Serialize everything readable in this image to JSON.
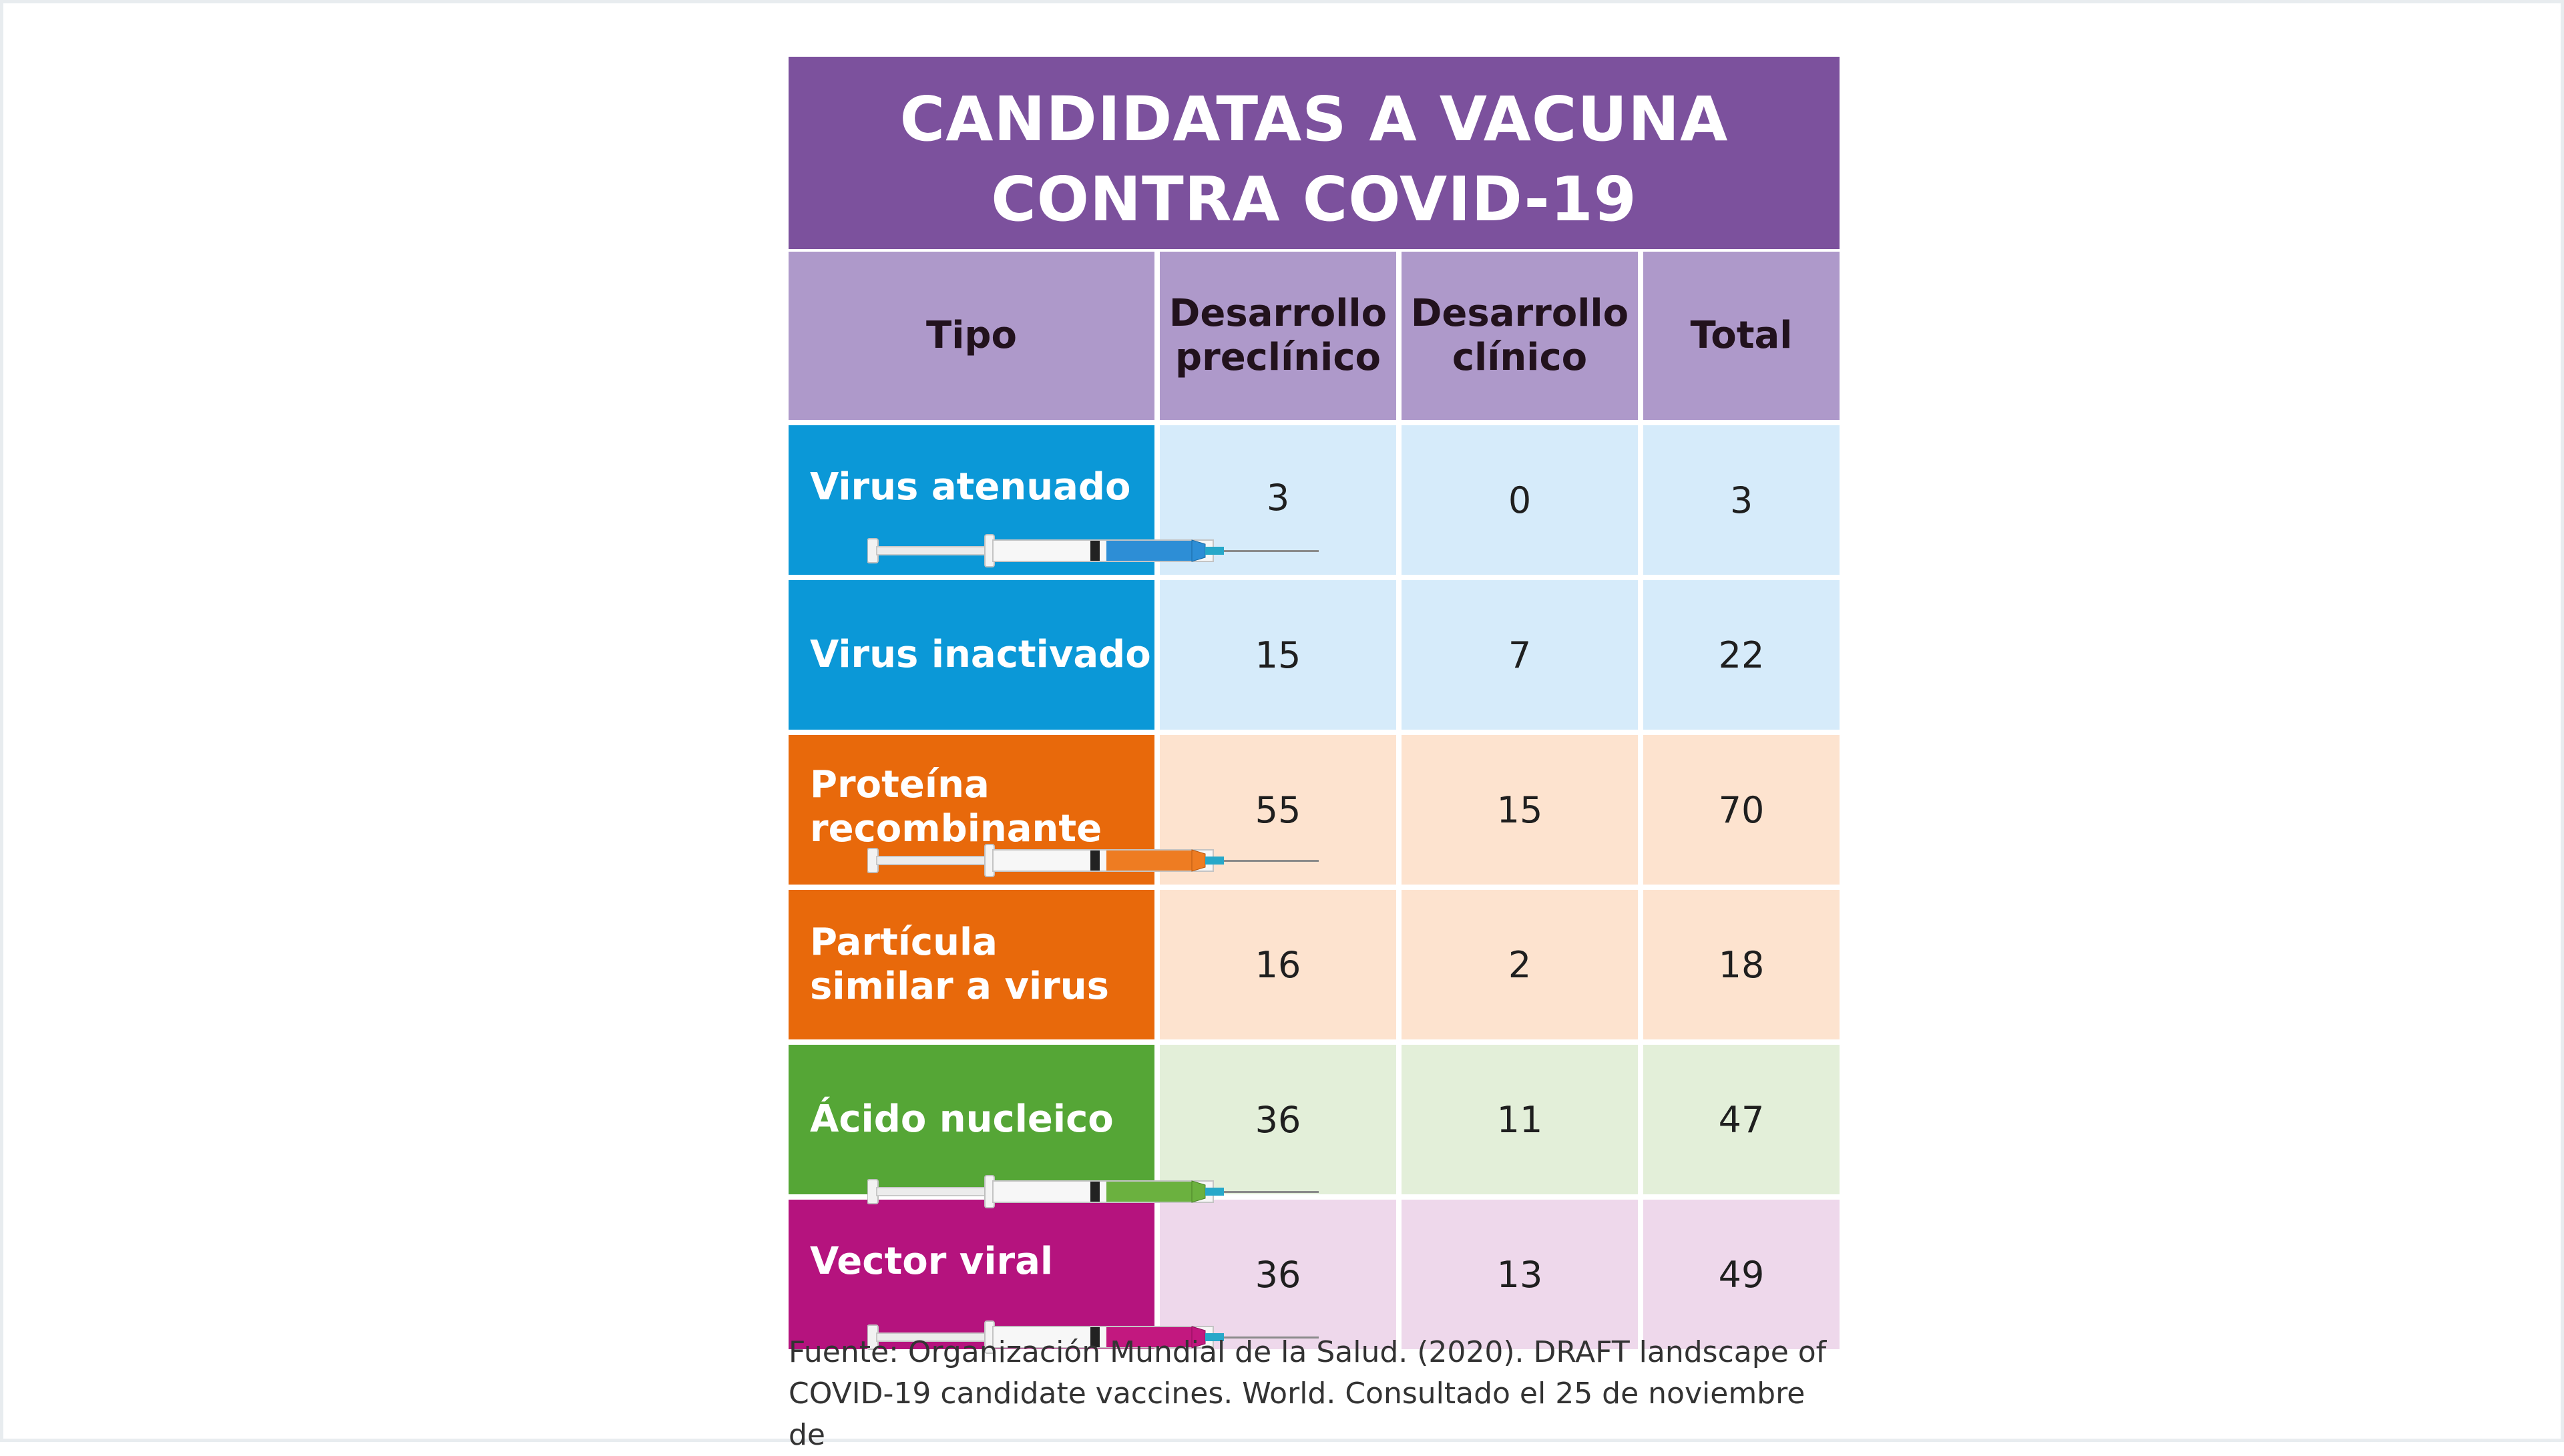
{
  "title": {
    "line1": "CANDIDATAS A VACUNA",
    "line2": "CONTRA COVID-19"
  },
  "columns": [
    {
      "line1": "Tipo",
      "line2": ""
    },
    {
      "line1": "Desarrollo",
      "line2": "preclínico"
    },
    {
      "line1": "Desarrollo",
      "line2": "clínico"
    },
    {
      "line1": "Total",
      "line2": ""
    }
  ],
  "rows": [
    {
      "label1": "Virus atenuado",
      "label2": "",
      "preclinico": "3",
      "clinico": "0",
      "total": "3"
    },
    {
      "label1": "Virus inactivado",
      "label2": "",
      "preclinico": "15",
      "clinico": "7",
      "total": "22"
    },
    {
      "label1": "Proteína",
      "label2": "recombinante",
      "preclinico": "55",
      "clinico": "15",
      "total": "70"
    },
    {
      "label1": "Partícula",
      "label2": "similar a virus",
      "preclinico": "16",
      "clinico": "2",
      "total": "18"
    },
    {
      "label1": "Ácido nucleico",
      "label2": "",
      "preclinico": "36",
      "clinico": "11",
      "total": "47"
    },
    {
      "label1": "Vector viral",
      "label2": "",
      "preclinico": "36",
      "clinico": "13",
      "total": "49"
    }
  ],
  "colors": {
    "title": "#7c519d",
    "header": "#ae99ca",
    "groups": [
      {
        "dark": "#0b98d7",
        "light": "#d6ebfa"
      },
      {
        "dark": "#e8690b",
        "light": "#fde3cf"
      },
      {
        "dark": "#55a636",
        "light": "#e3efd9"
      },
      {
        "dark": "#b5137e",
        "light": "#eed8eb"
      }
    ]
  },
  "source": {
    "line1": "Fuente: Organización Mundial de la Salud. (2020). DRAFT landscape of",
    "line2": "COVID-19 candidate vaccines. World. Consultado el 25 de noviembre de"
  },
  "chart_data": {
    "type": "table",
    "title": "CANDIDATAS A VACUNA CONTRA COVID-19",
    "columns": [
      "Tipo",
      "Desarrollo preclínico",
      "Desarrollo clínico",
      "Total"
    ],
    "rows": [
      [
        "Virus atenuado",
        3,
        0,
        3
      ],
      [
        "Virus inactivado",
        15,
        7,
        22
      ],
      [
        "Proteína recombinante",
        55,
        15,
        70
      ],
      [
        "Partícula similar a virus",
        16,
        2,
        18
      ],
      [
        "Ácido nucleico",
        36,
        11,
        47
      ],
      [
        "Vector viral",
        36,
        13,
        49
      ]
    ]
  }
}
